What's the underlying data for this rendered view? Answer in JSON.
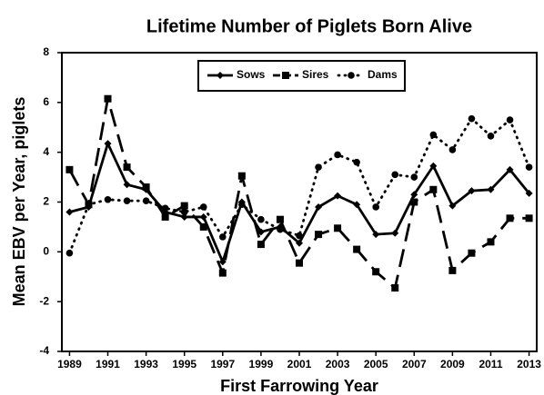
{
  "chart_data": {
    "type": "line",
    "title": "Lifetime Number of Piglets Born Alive",
    "xlabel": "First Farrowing Year",
    "ylabel": "Mean EBV per Year, piglets",
    "x": [
      1989,
      1990,
      1991,
      1992,
      1993,
      1994,
      1995,
      1996,
      1997,
      1998,
      1999,
      2000,
      2001,
      2002,
      2003,
      2004,
      2005,
      2006,
      2007,
      2008,
      2009,
      2010,
      2011,
      2012,
      2013
    ],
    "series": [
      {
        "name": "Sows",
        "color": "#000000",
        "marker": "diamond",
        "dash": "solid",
        "values": [
          1.6,
          1.8,
          4.35,
          2.7,
          2.5,
          1.6,
          1.4,
          1.4,
          -0.4,
          2.0,
          0.8,
          1.0,
          0.35,
          1.8,
          2.25,
          1.9,
          0.7,
          0.75,
          2.3,
          3.45,
          1.85,
          2.45,
          2.5,
          3.3,
          2.35
        ]
      },
      {
        "name": "Sires",
        "color": "#000000",
        "marker": "square",
        "dash": "dashed",
        "values": [
          3.3,
          1.9,
          6.15,
          3.4,
          2.6,
          1.4,
          1.85,
          1.0,
          -0.85,
          3.05,
          0.3,
          1.3,
          -0.45,
          0.7,
          0.95,
          0.1,
          -0.8,
          -1.45,
          2.0,
          2.5,
          -0.75,
          -0.05,
          0.4,
          1.35,
          1.35
        ]
      },
      {
        "name": "Dams",
        "color": "#000000",
        "marker": "circle",
        "dash": "dotted",
        "values": [
          -0.05,
          1.9,
          2.1,
          2.05,
          2.05,
          1.75,
          1.6,
          1.8,
          0.6,
          1.9,
          1.3,
          0.9,
          0.65,
          3.4,
          3.9,
          3.6,
          1.8,
          3.1,
          3.0,
          4.7,
          4.1,
          5.35,
          4.65,
          5.3,
          3.4
        ]
      }
    ],
    "xlim": [
      1988.6,
      2013.4
    ],
    "xticks": [
      1989,
      1991,
      1993,
      1995,
      1997,
      1999,
      2001,
      2003,
      2005,
      2007,
      2009,
      2011,
      2013
    ],
    "ylim": [
      -4,
      8
    ],
    "yticks": [
      -4,
      -2,
      0,
      2,
      4,
      6,
      8
    ],
    "grid": false,
    "legend": "top"
  }
}
